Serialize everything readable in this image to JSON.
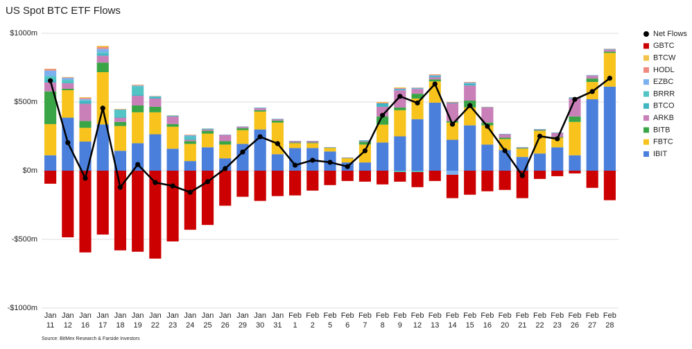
{
  "chart_data": {
    "type": "bar",
    "stacked": true,
    "title": "US Spot BTC ETF Flows",
    "source": "Source: BitMex Research & Farside Investors",
    "categories": [
      [
        "Jan",
        "11"
      ],
      [
        "Jan",
        "12"
      ],
      [
        "Jan",
        "16"
      ],
      [
        "Jan",
        "17"
      ],
      [
        "Jan",
        "18"
      ],
      [
        "Jan",
        "19"
      ],
      [
        "Jan",
        "22"
      ],
      [
        "Jan",
        "23"
      ],
      [
        "Jan",
        "24"
      ],
      [
        "Jan",
        "25"
      ],
      [
        "Jan",
        "26"
      ],
      [
        "Jan",
        "29"
      ],
      [
        "Jan",
        "30"
      ],
      [
        "Jan",
        "31"
      ],
      [
        "Feb",
        "1"
      ],
      [
        "Feb",
        "2"
      ],
      [
        "Feb",
        "5"
      ],
      [
        "Feb",
        "6"
      ],
      [
        "Feb",
        "7"
      ],
      [
        "Feb",
        "8"
      ],
      [
        "Feb",
        "9"
      ],
      [
        "Feb",
        "12"
      ],
      [
        "Feb",
        "13"
      ],
      [
        "Feb",
        "14"
      ],
      [
        "Feb",
        "15"
      ],
      [
        "Feb",
        "16"
      ],
      [
        "Feb",
        "20"
      ],
      [
        "Feb",
        "21"
      ],
      [
        "Feb",
        "22"
      ],
      [
        "Feb",
        "23"
      ],
      [
        "Feb",
        "26"
      ],
      [
        "Feb",
        "27"
      ],
      [
        "Feb",
        "28"
      ]
    ],
    "ylim": [
      -1000,
      1000
    ],
    "yticks": [
      {
        "value": -1000,
        "label": "-$1000m"
      },
      {
        "value": -500,
        "label": "-$500m"
      },
      {
        "value": 0,
        "label": "$0m"
      },
      {
        "value": 500,
        "label": "$500m"
      },
      {
        "value": 1000,
        "label": "$1000m"
      }
    ],
    "grid": true,
    "legend": "right",
    "series": [
      {
        "name": "IBIT",
        "color": "#4a7fdb",
        "values": [
          112,
          386,
          212,
          337,
          145,
          200,
          265,
          160,
          70,
          170,
          90,
          195,
          300,
          120,
          165,
          165,
          140,
          60,
          60,
          205,
          250,
          375,
          495,
          225,
          330,
          190,
          150,
          100,
          125,
          170,
          112,
          520,
          612
        ]
      },
      {
        "name": "FBTC",
        "color": "#f8c31c",
        "values": [
          227,
          200,
          100,
          380,
          180,
          225,
          160,
          160,
          125,
          100,
          100,
          100,
          130,
          230,
          35,
          35,
          25,
          30,
          130,
          130,
          190,
          150,
          155,
          125,
          130,
          140,
          80,
          60,
          165,
          70,
          243,
          126,
          245
        ]
      },
      {
        "name": "BITB",
        "color": "#3aa547",
        "values": [
          238,
          10,
          50,
          70,
          30,
          50,
          40,
          20,
          20,
          20,
          25,
          15,
          10,
          15,
          5,
          5,
          2,
          3,
          20,
          60,
          20,
          35,
          15,
          10,
          50,
          20,
          10,
          5,
          5,
          5,
          40,
          25,
          10
        ]
      },
      {
        "name": "ARKB",
        "color": "#c97fb8",
        "values": [
          65,
          40,
          125,
          50,
          30,
          70,
          60,
          55,
          10,
          10,
          45,
          10,
          15,
          10,
          10,
          10,
          3,
          3,
          5,
          70,
          125,
          35,
          15,
          130,
          110,
          110,
          25,
          5,
          5,
          30,
          130,
          20,
          15
        ]
      },
      {
        "name": "BTCO",
        "color": "#3fb6c2",
        "values": [
          17,
          5,
          20,
          15,
          10,
          10,
          10,
          5,
          5,
          3,
          2,
          1,
          3,
          2,
          2,
          2,
          2,
          0,
          5,
          25,
          6,
          5,
          10,
          5,
          15,
          3,
          3,
          2,
          3,
          3,
          5,
          3,
          3
        ]
      },
      {
        "name": "BRRR",
        "color": "#52c4c4",
        "values": [
          30,
          20,
          5,
          10,
          50,
          60,
          5,
          2,
          20,
          3,
          0,
          1,
          1,
          1,
          0,
          0,
          0,
          0,
          0,
          0,
          -10,
          -10,
          0,
          0,
          0,
          0,
          0,
          0,
          0,
          0,
          0,
          0,
          0
        ]
      },
      {
        "name": "EZBC",
        "color": "#7db0ee",
        "values": [
          40,
          15,
          10,
          25,
          0,
          5,
          2,
          0,
          8,
          1,
          1,
          1,
          1,
          1,
          0,
          0,
          0,
          0,
          2,
          0,
          5,
          3,
          5,
          -30,
          6,
          0,
          0,
          0,
          0,
          0,
          3,
          2,
          2
        ]
      },
      {
        "name": "HODL",
        "color": "#f08a80",
        "values": [
          11,
          3,
          8,
          12,
          3,
          4,
          2,
          1,
          3,
          0,
          0,
          0,
          0,
          0,
          0,
          0,
          0,
          0,
          0,
          5,
          5,
          2,
          5,
          5,
          3,
          2,
          0,
          0,
          0,
          0,
          2,
          1,
          1
        ]
      },
      {
        "name": "BTCW",
        "color": "#f3c34a",
        "values": [
          2,
          3,
          5,
          10,
          2,
          2,
          1,
          1,
          2,
          1,
          0,
          0,
          0,
          0,
          0,
          0,
          0,
          0,
          0,
          5,
          5,
          1,
          2,
          0,
          2,
          0,
          0,
          0,
          0,
          0,
          0,
          0,
          1
        ]
      },
      {
        "name": "GBTC",
        "color": "#cc0000",
        "values": [
          -95,
          -485,
          -595,
          -465,
          -580,
          -590,
          -640,
          -515,
          -430,
          -395,
          -255,
          -190,
          -220,
          -185,
          -180,
          -145,
          -105,
          -75,
          -80,
          -100,
          -70,
          -110,
          -75,
          -170,
          -175,
          -150,
          -140,
          -200,
          -60,
          -40,
          -20,
          -125,
          -215
        ]
      },
      {
        "name": "Net Flows",
        "type": "line",
        "color": "#000000",
        "values": [
          655,
          204,
          -55,
          455,
          -121,
          45,
          -86,
          -111,
          -157,
          -80,
          15,
          136,
          247,
          197,
          40,
          76,
          61,
          30,
          145,
          403,
          541,
          493,
          631,
          338,
          474,
          323,
          146,
          -36,
          251,
          232,
          519,
          576,
          673
        ]
      }
    ]
  }
}
